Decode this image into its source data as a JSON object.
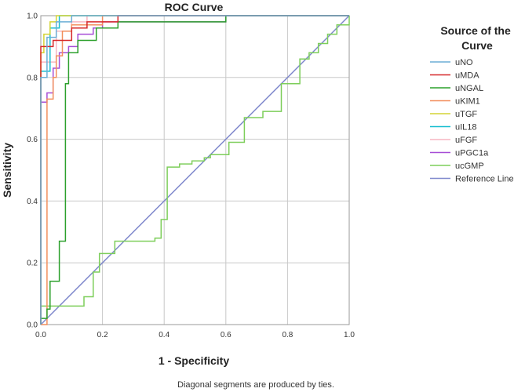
{
  "chart_data": {
    "type": "line",
    "title": "ROC Curve",
    "xlabel": "1 - Specificity",
    "ylabel": "Sensitivity",
    "xlim": [
      0,
      1
    ],
    "ylim": [
      0,
      1
    ],
    "xticks": [
      "0.0",
      "0.2",
      "0.4",
      "0.6",
      "0.8",
      "1.0"
    ],
    "yticks": [
      "0.0",
      "0.2",
      "0.4",
      "0.6",
      "0.8",
      "1.0"
    ],
    "grid": true,
    "legend_title_lines": [
      "Source of the",
      "Curve"
    ],
    "legend_position": "right",
    "footnote": "Diagonal segments are produced by ties.",
    "series": [
      {
        "name": "uNO",
        "color": "#6baed6",
        "points": [
          [
            0,
            0
          ],
          [
            0,
            0.8
          ],
          [
            0.02,
            0.8
          ],
          [
            0.02,
            0.93
          ],
          [
            0.05,
            0.93
          ],
          [
            0.05,
            0.98
          ],
          [
            0.1,
            0.98
          ],
          [
            0.1,
            1
          ],
          [
            1,
            1
          ]
        ]
      },
      {
        "name": "uMDA",
        "color": "#d62728",
        "points": [
          [
            0,
            0
          ],
          [
            0,
            0.9
          ],
          [
            0.04,
            0.9
          ],
          [
            0.04,
            0.92
          ],
          [
            0.1,
            0.92
          ],
          [
            0.1,
            0.96
          ],
          [
            0.15,
            0.96
          ],
          [
            0.15,
            0.98
          ],
          [
            0.25,
            0.98
          ],
          [
            0.25,
            1
          ],
          [
            1,
            1
          ]
        ]
      },
      {
        "name": "uNGAL",
        "color": "#2ca02c",
        "points": [
          [
            0,
            0
          ],
          [
            0,
            0.02
          ],
          [
            0.02,
            0.02
          ],
          [
            0.02,
            0.05
          ],
          [
            0.03,
            0.05
          ],
          [
            0.03,
            0.14
          ],
          [
            0.06,
            0.14
          ],
          [
            0.06,
            0.27
          ],
          [
            0.08,
            0.27
          ],
          [
            0.08,
            0.78
          ],
          [
            0.09,
            0.78
          ],
          [
            0.09,
            0.88
          ],
          [
            0.12,
            0.88
          ],
          [
            0.12,
            0.92
          ],
          [
            0.18,
            0.92
          ],
          [
            0.18,
            0.96
          ],
          [
            0.25,
            0.96
          ],
          [
            0.25,
            0.98
          ],
          [
            0.6,
            0.98
          ],
          [
            0.6,
            1
          ],
          [
            1,
            1
          ]
        ]
      },
      {
        "name": "uKIM1",
        "color": "#f28e5c",
        "points": [
          [
            0,
            0
          ],
          [
            0.02,
            0
          ],
          [
            0.02,
            0.73
          ],
          [
            0.04,
            0.73
          ],
          [
            0.04,
            0.8
          ],
          [
            0.05,
            0.8
          ],
          [
            0.05,
            0.87
          ],
          [
            0.07,
            0.87
          ],
          [
            0.07,
            0.95
          ],
          [
            0.1,
            0.95
          ],
          [
            0.1,
            0.97
          ],
          [
            0.2,
            0.97
          ],
          [
            0.2,
            1
          ],
          [
            1,
            1
          ]
        ]
      },
      {
        "name": "uTGF",
        "color": "#d4d435",
        "points": [
          [
            0,
            0
          ],
          [
            0,
            0.88
          ],
          [
            0.01,
            0.88
          ],
          [
            0.01,
            0.94
          ],
          [
            0.03,
            0.94
          ],
          [
            0.03,
            0.98
          ],
          [
            0.05,
            0.98
          ],
          [
            0.05,
            1
          ],
          [
            1,
            1
          ]
        ]
      },
      {
        "name": "uIL18",
        "color": "#17becf",
        "points": [
          [
            0,
            0
          ],
          [
            0,
            0.82
          ],
          [
            0.03,
            0.82
          ],
          [
            0.03,
            0.96
          ],
          [
            0.06,
            0.96
          ],
          [
            0.06,
            1
          ],
          [
            1,
            1
          ]
        ]
      },
      {
        "name": "uFGF",
        "color": "#f7b6c2",
        "points": [
          [
            0,
            0
          ],
          [
            0,
            0.85
          ],
          [
            0.05,
            0.85
          ],
          [
            0.05,
            0.95
          ],
          [
            0.1,
            0.95
          ],
          [
            0.1,
            0.98
          ],
          [
            0.15,
            0.98
          ],
          [
            0.15,
            1
          ],
          [
            1,
            1
          ]
        ]
      },
      {
        "name": "uPGC1a",
        "color": "#a64dd6",
        "points": [
          [
            0,
            0
          ],
          [
            0,
            0.72
          ],
          [
            0.02,
            0.72
          ],
          [
            0.02,
            0.75
          ],
          [
            0.04,
            0.75
          ],
          [
            0.04,
            0.83
          ],
          [
            0.06,
            0.83
          ],
          [
            0.06,
            0.88
          ],
          [
            0.09,
            0.88
          ],
          [
            0.09,
            0.9
          ],
          [
            0.12,
            0.9
          ],
          [
            0.12,
            0.94
          ],
          [
            0.17,
            0.94
          ],
          [
            0.17,
            0.96
          ],
          [
            0.2,
            0.96
          ],
          [
            0.2,
            0.98
          ],
          [
            0.6,
            0.98
          ],
          [
            0.6,
            1
          ],
          [
            1,
            1
          ]
        ]
      },
      {
        "name": "ucGMP",
        "color": "#7dce5a",
        "points": [
          [
            0,
            0
          ],
          [
            0,
            0.06
          ],
          [
            0.14,
            0.06
          ],
          [
            0.14,
            0.09
          ],
          [
            0.17,
            0.09
          ],
          [
            0.17,
            0.17
          ],
          [
            0.19,
            0.17
          ],
          [
            0.19,
            0.23
          ],
          [
            0.24,
            0.23
          ],
          [
            0.24,
            0.27
          ],
          [
            0.37,
            0.27
          ],
          [
            0.37,
            0.28
          ],
          [
            0.39,
            0.28
          ],
          [
            0.39,
            0.34
          ],
          [
            0.41,
            0.34
          ],
          [
            0.41,
            0.51
          ],
          [
            0.45,
            0.51
          ],
          [
            0.45,
            0.52
          ],
          [
            0.49,
            0.52
          ],
          [
            0.49,
            0.53
          ],
          [
            0.53,
            0.53
          ],
          [
            0.53,
            0.54
          ],
          [
            0.55,
            0.54
          ],
          [
            0.55,
            0.55
          ],
          [
            0.61,
            0.55
          ],
          [
            0.61,
            0.59
          ],
          [
            0.66,
            0.59
          ],
          [
            0.66,
            0.67
          ],
          [
            0.72,
            0.67
          ],
          [
            0.72,
            0.69
          ],
          [
            0.78,
            0.69
          ],
          [
            0.78,
            0.78
          ],
          [
            0.84,
            0.78
          ],
          [
            0.84,
            0.86
          ],
          [
            0.87,
            0.86
          ],
          [
            0.87,
            0.88
          ],
          [
            0.9,
            0.88
          ],
          [
            0.9,
            0.91
          ],
          [
            0.93,
            0.91
          ],
          [
            0.93,
            0.94
          ],
          [
            0.96,
            0.94
          ],
          [
            0.96,
            0.97
          ],
          [
            1,
            0.97
          ],
          [
            1,
            1
          ]
        ]
      },
      {
        "name": "Reference Line",
        "color": "#7f88cc",
        "points": [
          [
            0,
            0
          ],
          [
            1,
            1
          ]
        ]
      }
    ]
  }
}
